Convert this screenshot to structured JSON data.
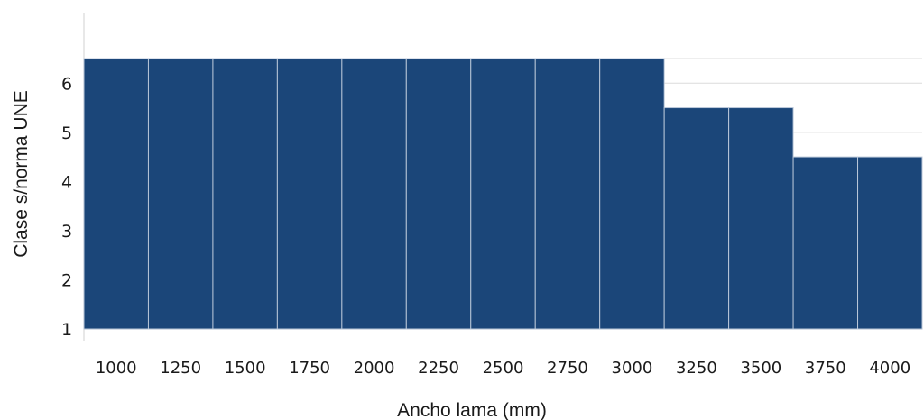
{
  "chart_data": {
    "type": "bar",
    "categories": [
      "1000",
      "1250",
      "1500",
      "1750",
      "2000",
      "2250",
      "2500",
      "2750",
      "3000",
      "3250",
      "3500",
      "3750",
      "4000"
    ],
    "values": [
      6,
      6,
      6,
      6,
      6,
      6,
      6,
      6,
      6,
      5,
      5,
      4,
      4
    ],
    "xlabel": "Ancho lama (mm)",
    "ylabel": "Clase s/norma UNE",
    "yticks": [
      "1",
      "2",
      "3",
      "4",
      "5",
      "6"
    ],
    "ylim": [
      0.5,
      6
    ],
    "grid": true,
    "bar_color": "#1b4679",
    "gridline_color": "#dcdcdc"
  }
}
